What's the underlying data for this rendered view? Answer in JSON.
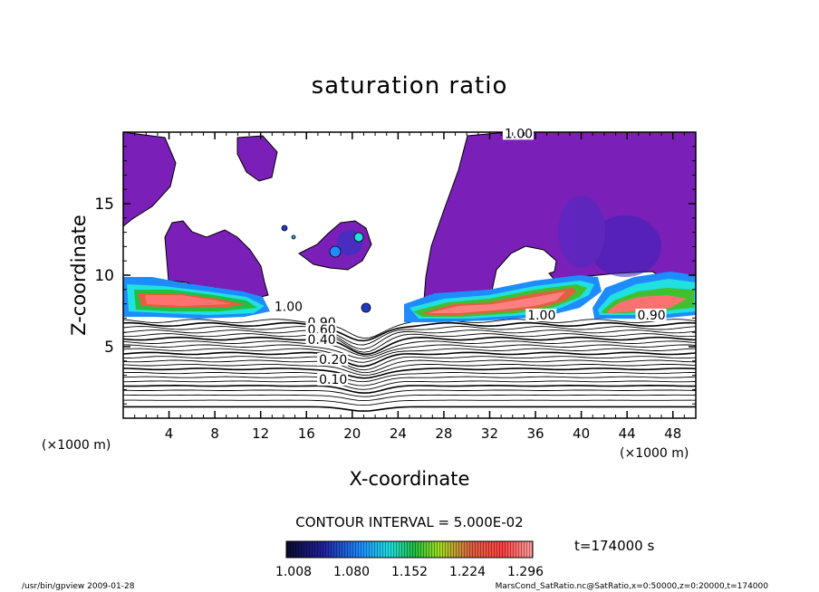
{
  "chart_data": {
    "type": "heatmap",
    "title": "saturation ratio",
    "xlabel": "X-coordinate",
    "ylabel": "Z-coordinate",
    "x_unit_left": "(×1000 m)",
    "x_unit_right": "(×1000 m)",
    "xlim": [
      0,
      50
    ],
    "ylim": [
      0,
      20
    ],
    "x_ticks": [
      4,
      8,
      12,
      16,
      20,
      24,
      28,
      32,
      36,
      40,
      44,
      48
    ],
    "y_ticks": [
      5,
      10,
      15
    ],
    "contour_interval": "CONTOUR INTERVAL = 5.000E-02",
    "time_label": "t=174000 s",
    "colorbar": {
      "labels": [
        "1.008",
        "1.080",
        "1.152",
        "1.224",
        "1.296"
      ],
      "min": 1.008,
      "max": 1.3,
      "colors": [
        "#0a0a30",
        "#2020a0",
        "#1e8cff",
        "#20e0e0",
        "#20c040",
        "#a0e020",
        "#e06040",
        "#ff4040",
        "#ffa0a0"
      ]
    },
    "contour_labels": [
      {
        "text": "1.00",
        "x": 33.3,
        "z": 19.6
      },
      {
        "text": "1.00",
        "x": 35.3,
        "z": 6.9
      },
      {
        "text": "0.90",
        "x": 44.9,
        "z": 6.9
      },
      {
        "text": "1.00",
        "x": 13.2,
        "z": 7.5
      },
      {
        "text": "0.90",
        "x": 16.1,
        "z": 6.4
      },
      {
        "text": "0.60",
        "x": 16.1,
        "z": 5.9
      },
      {
        "text": "0.40",
        "x": 16.1,
        "z": 5.2
      },
      {
        "text": "0.20",
        "x": 17.1,
        "z": 3.8
      },
      {
        "text": "0.10",
        "x": 17.1,
        "z": 2.4
      }
    ]
  },
  "footer": {
    "left": "/usr/bin/gpview   2009-01-28",
    "right": "MarsCond_SatRatio.nc@SatRatio,x=0:50000,z=0:20000,t=174000"
  }
}
